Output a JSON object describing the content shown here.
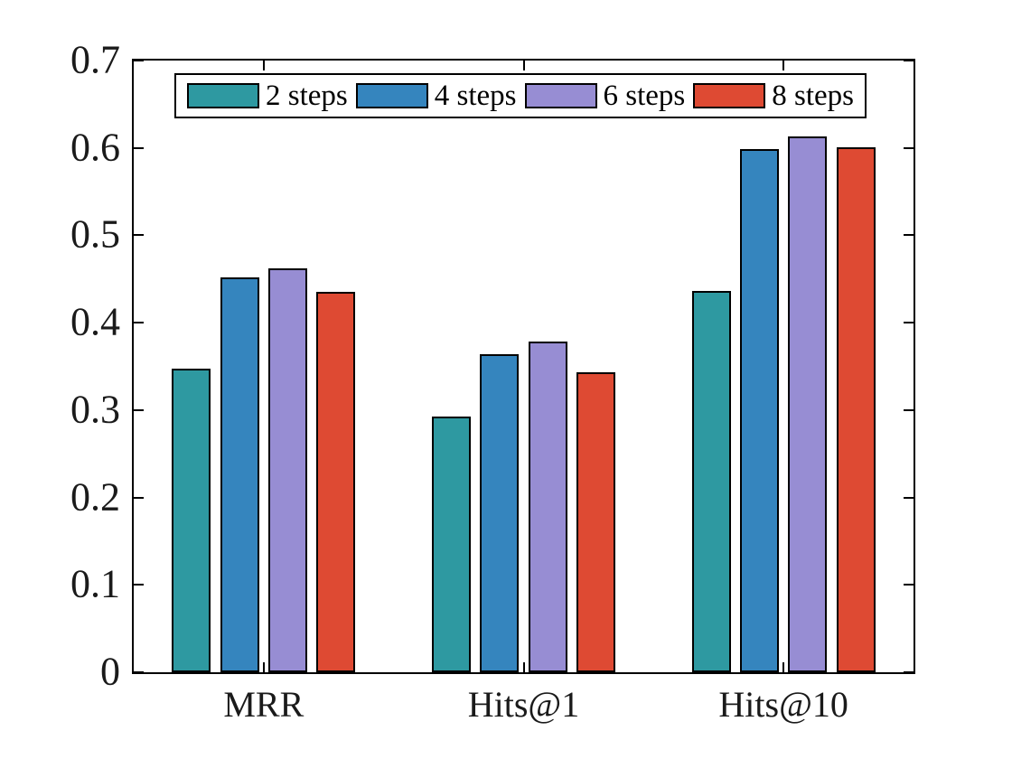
{
  "chart_data": {
    "type": "bar",
    "title": "",
    "xlabel": "",
    "ylabel": "",
    "categories": [
      "MRR",
      "Hits@1",
      "Hits@10"
    ],
    "series": [
      {
        "name": "2 steps",
        "color": "#2E99A1",
        "values": [
          0.347,
          0.293,
          0.436
        ]
      },
      {
        "name": "4 steps",
        "color": "#3585BE",
        "values": [
          0.452,
          0.364,
          0.599
        ]
      },
      {
        "name": "6 steps",
        "color": "#978DD3",
        "values": [
          0.462,
          0.378,
          0.613
        ]
      },
      {
        "name": "8 steps",
        "color": "#DE4A33",
        "values": [
          0.435,
          0.343,
          0.601
        ]
      }
    ],
    "ylim": [
      0,
      0.7
    ],
    "ytick_values": [
      0,
      0.1,
      0.2,
      0.3,
      0.4,
      0.5,
      0.6,
      0.7
    ],
    "yticks": [
      "0",
      "0.1",
      "0.2",
      "0.3",
      "0.4",
      "0.5",
      "0.6",
      "0.7"
    ],
    "grid": false,
    "legend_position": "top-inside",
    "axis_color": "#000000",
    "background_color": "#FFFFFF",
    "text_color": "#1A1A1A"
  }
}
